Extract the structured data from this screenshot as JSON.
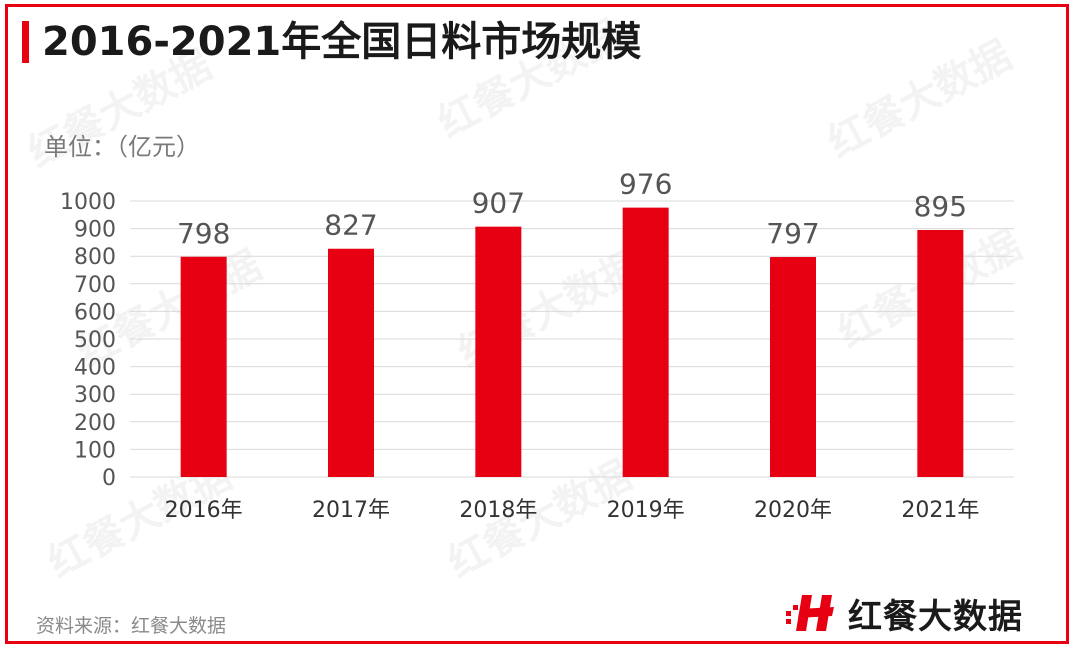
{
  "title": "2016-2021年全国日料市场规模",
  "unit_label": "单位：（亿元）",
  "source": "资料来源：红餐大数据",
  "brand": {
    "name": "红餐大数据",
    "logo_icon": "hongcan-logo-icon"
  },
  "watermark": "红餐大数据",
  "colors": {
    "accent": "#e60012",
    "bar": "#e60012",
    "text": "#1a1a1a",
    "muted": "#7a7a7a",
    "grid": "#d9d9d9"
  },
  "chart_data": {
    "type": "bar",
    "title": "2016-2021年全国日料市场规模",
    "xlabel": "",
    "ylabel": "单位：（亿元）",
    "categories": [
      "2016年",
      "2017年",
      "2018年",
      "2019年",
      "2020年",
      "2021年"
    ],
    "values": [
      798,
      827,
      907,
      976,
      797,
      895
    ],
    "ylim": [
      0,
      1000
    ],
    "yticks": [
      0,
      100,
      200,
      300,
      400,
      500,
      600,
      700,
      800,
      900,
      1000
    ],
    "grid": true,
    "data_labels": true,
    "legend": "none"
  }
}
